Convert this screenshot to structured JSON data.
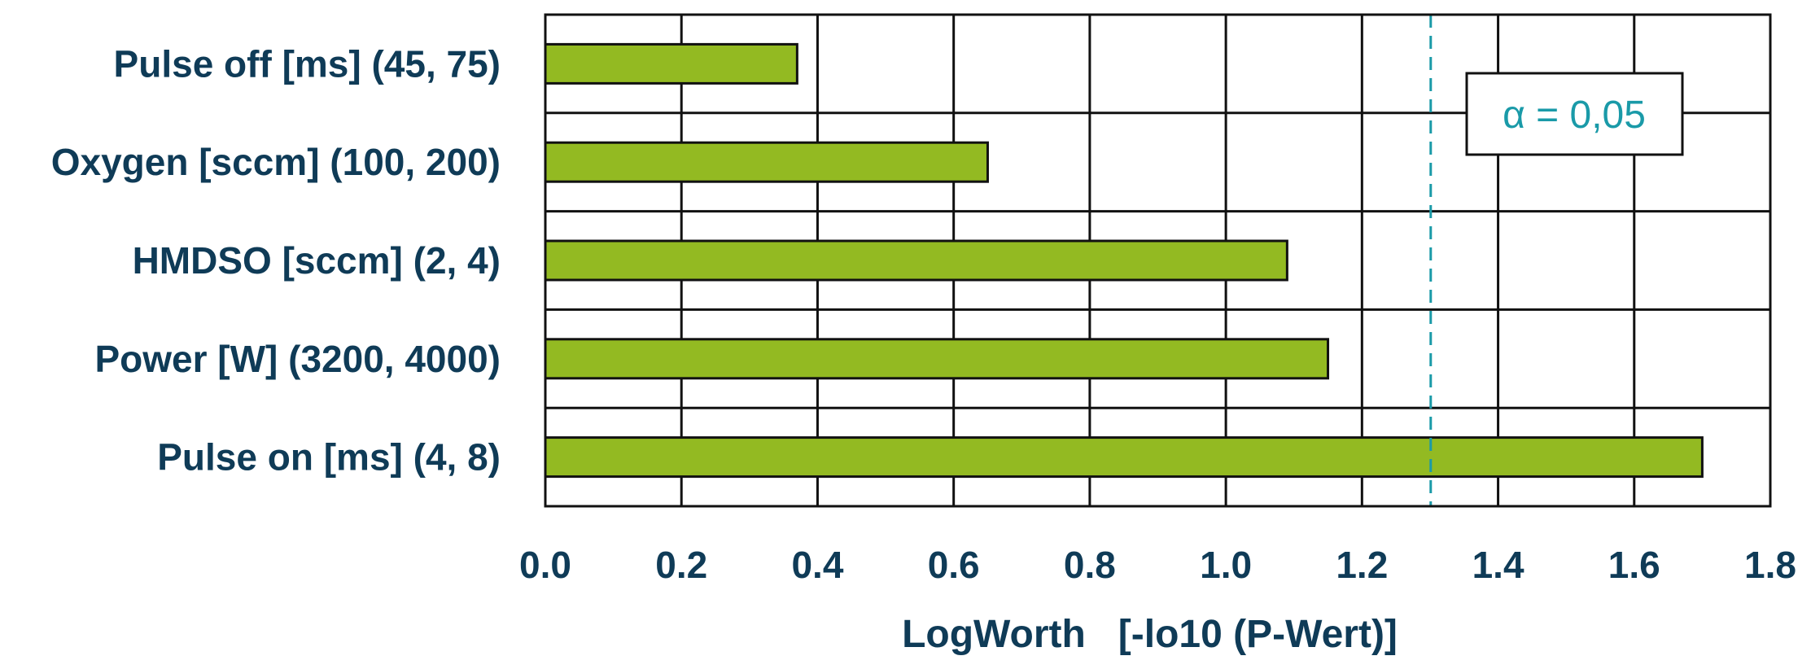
{
  "chart_data": {
    "type": "bar",
    "orientation": "horizontal",
    "categories": [
      "Pulse off [ms] (45, 75)",
      "Oxygen [sccm] (100, 200)",
      "HMDSO [sccm] (2, 4)",
      "Power [W] (3200, 4000)",
      "Pulse on [ms] (4, 8)"
    ],
    "values": [
      0.37,
      0.65,
      1.09,
      1.15,
      1.7
    ],
    "xlabel": "LogWorth   [-lo10 (P-Wert)]",
    "ylabel": "",
    "xlim": [
      0.0,
      1.8
    ],
    "xticks": [
      "0.0",
      "0.2",
      "0.4",
      "0.6",
      "0.8",
      "1.0",
      "1.2",
      "1.4",
      "1.6",
      "1.8"
    ],
    "grid": true,
    "threshold": {
      "value": 1.301,
      "label": "α = 0,05",
      "style": "dashed"
    },
    "colors": {
      "bar_fill": "#93ba22",
      "bar_stroke": "#111111",
      "threshold": "#1a9aa8",
      "text": "#0f3b57",
      "grid": "#111111"
    }
  }
}
